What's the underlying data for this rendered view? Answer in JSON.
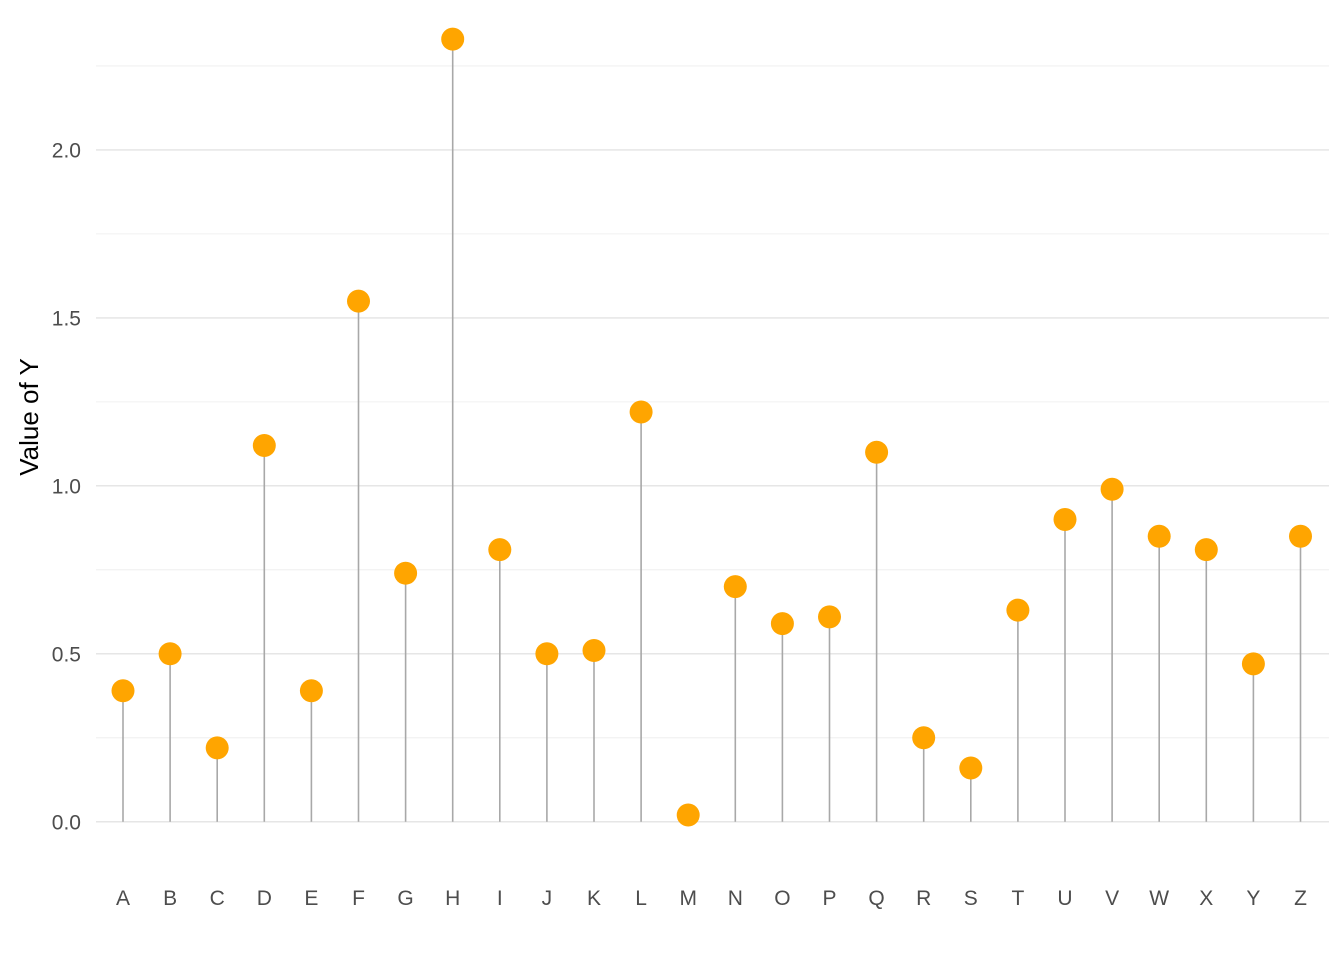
{
  "chart_data": {
    "type": "lollipop",
    "ylabel": "Value of Y",
    "xlabel": "",
    "title": "",
    "ylim": [
      -0.09,
      2.36
    ],
    "y_ticks": [
      0.0,
      0.5,
      1.0,
      1.5,
      2.0
    ],
    "y_tick_labels": [
      "0.0",
      "0.5",
      "1.0",
      "1.5",
      "2.0"
    ],
    "y_minor_ticks": [
      0.25,
      0.75,
      1.25,
      1.75,
      2.25
    ],
    "grid": true,
    "legend": "none",
    "point_color": "#FFA500",
    "stem_color": "#A8A8A8",
    "categories": [
      "A",
      "B",
      "C",
      "D",
      "E",
      "F",
      "G",
      "H",
      "I",
      "J",
      "K",
      "L",
      "M",
      "N",
      "O",
      "P",
      "Q",
      "R",
      "S",
      "T",
      "U",
      "V",
      "W",
      "X",
      "Y",
      "Z"
    ],
    "values": [
      0.39,
      0.5,
      0.22,
      1.12,
      0.39,
      1.55,
      0.74,
      2.33,
      0.81,
      0.5,
      0.51,
      1.22,
      0.02,
      0.7,
      0.59,
      0.61,
      1.1,
      0.25,
      0.16,
      0.63,
      0.9,
      0.99,
      0.85,
      0.81,
      0.47,
      0.85
    ]
  }
}
